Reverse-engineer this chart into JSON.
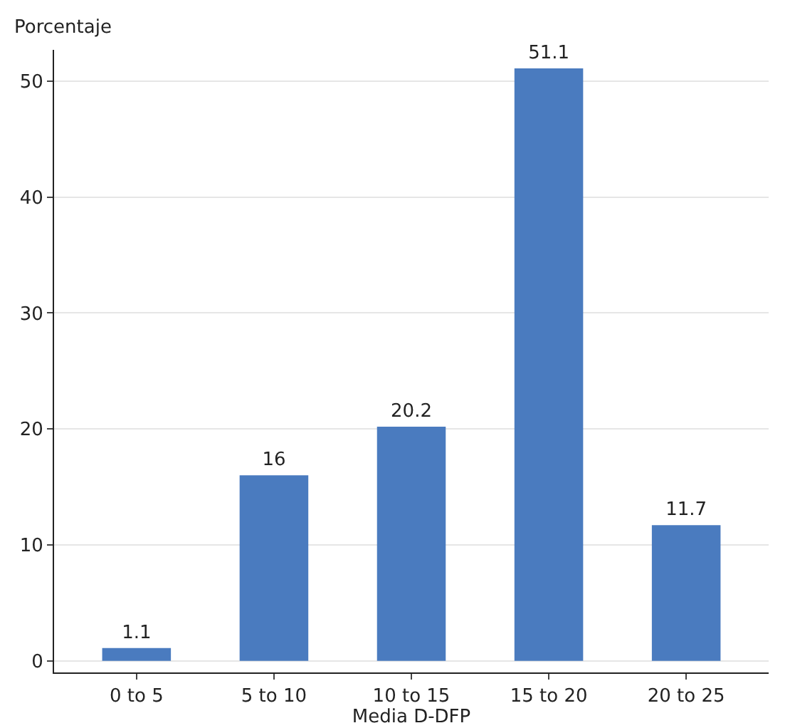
{
  "chart_data": {
    "type": "bar",
    "categories": [
      "0 to 5",
      "5 to 10",
      "10 to 15",
      "15 to 20",
      "20 to 25"
    ],
    "values": [
      1.1,
      16,
      20.2,
      51.1,
      11.7
    ],
    "color": "#4a7bbf",
    "xlabel": "Media D-DFP",
    "ylabel": "Porcentaje",
    "ylim": [
      -1,
      52.7
    ],
    "yticks": [
      0,
      10,
      20,
      30,
      40,
      50
    ],
    "grid": "y",
    "data_labels": true
  }
}
